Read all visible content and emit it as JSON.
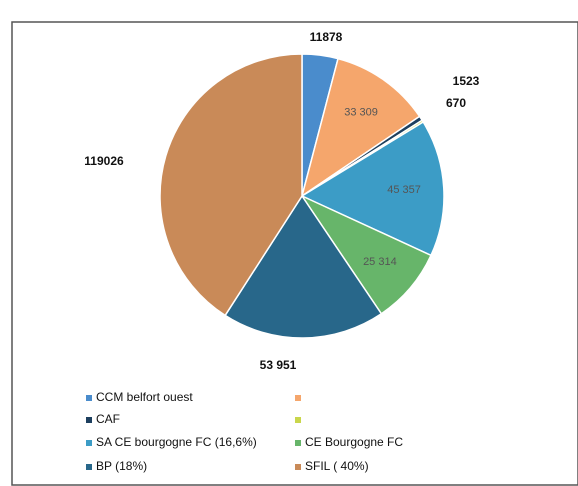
{
  "chart_data": {
    "type": "pie",
    "categories": [
      "CCM belfort ouest",
      null,
      "CAF",
      null,
      "SA CE bourgogne FC (16,6%)",
      "CE Bourgogne FC",
      "BP (18%)",
      "SFIL ( 40%)"
    ],
    "values": [
      11878,
      33309,
      1523,
      670,
      45357,
      25314,
      53951,
      119026
    ],
    "value_labels": [
      "11878",
      "33 309",
      "1523",
      "670",
      "45 357",
      "25 314",
      "53 951",
      "119026"
    ],
    "colors": [
      "#4a8ccc",
      "#f5a66c",
      "#1d3f5e",
      "#c9d64c",
      "#3c9cc6",
      "#67b56a",
      "#28678a",
      "#c98a58"
    ]
  }
}
